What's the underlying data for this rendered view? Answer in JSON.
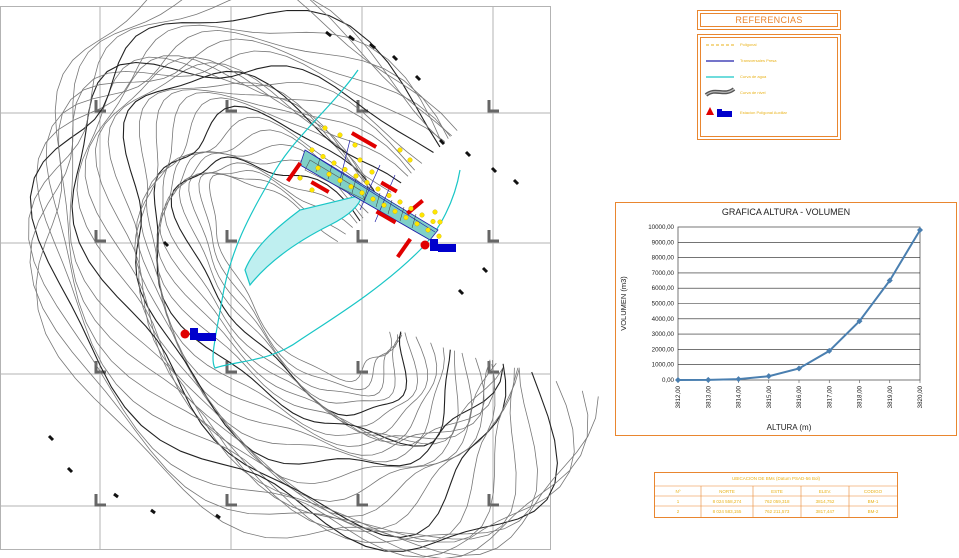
{
  "references": {
    "title": "REFERENCIAS",
    "items": [
      {
        "label": "Poligonal",
        "icon": "polygon-line-icon",
        "color": "#e9b21a"
      },
      {
        "label": "Transversales Presa",
        "icon": "blue-line-icon",
        "color": "#2222aa"
      },
      {
        "label": "Curva de agua",
        "icon": "cyan-line-icon",
        "color": "#19c6c6"
      },
      {
        "label": "Curva de nivel",
        "icon": "contour-band-icon",
        "color": "#555555"
      },
      {
        "label": "Estacion Poligonal Auxiliar",
        "icon": "station-marker-icon",
        "color": "#d40000"
      }
    ]
  },
  "chart_data": {
    "type": "line",
    "title": "GRAFICA ALTURA - VOLUMEN",
    "xlabel": "ALTURA (m)",
    "ylabel": "VOLUMEN (m3)",
    "categories": [
      "3812,00",
      "3813,00",
      "3814,00",
      "3815,00",
      "3816,00",
      "3817,00",
      "3818,00",
      "3819,00",
      "3820,00"
    ],
    "x": [
      3812,
      3813,
      3814,
      3815,
      3816,
      3817,
      3818,
      3819,
      3820
    ],
    "values": [
      0,
      5,
      60,
      250,
      750,
      1900,
      3850,
      6500,
      9800
    ],
    "ylim": [
      0,
      10000
    ],
    "yticks": [
      "0,00",
      "1000,00",
      "2000,00",
      "3000,00",
      "4000,00",
      "5000,00",
      "6000,00",
      "7000,00",
      "8000,00",
      "9000,00",
      "10000,00"
    ],
    "grid": true,
    "line_color": "#4a7fb0"
  },
  "location_table": {
    "title": "UBICACION DE BMs (Datum PSAD-56 Bol)",
    "headers": [
      "Nº",
      "NORTE",
      "ESTE",
      "ELEV.",
      "CODIGO"
    ],
    "rows": [
      [
        "1",
        "8 024 558,274",
        "762 059,318",
        "3814,752",
        "BM-1"
      ],
      [
        "2",
        "8 024 583,155",
        "762 211,573",
        "3817,447",
        "BM-2"
      ]
    ]
  },
  "colors": {
    "accent": "#e9862f",
    "label_yellow": "#e9b21a",
    "grid": "#b9b9b9",
    "water": "#19c6c6",
    "dam_red": "#e00000",
    "marker_blue": "#0000cc"
  }
}
